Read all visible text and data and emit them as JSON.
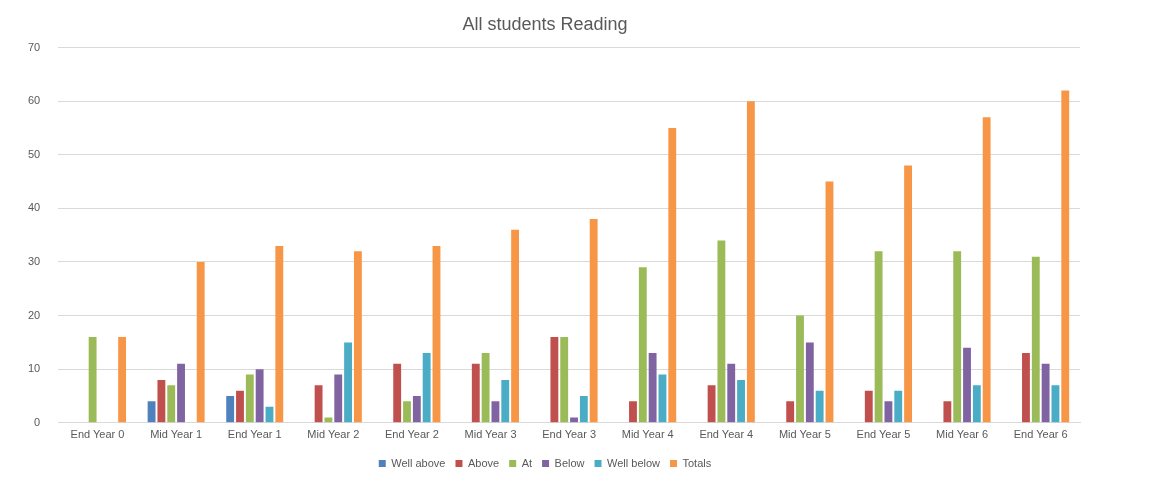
{
  "chart_data": {
    "type": "bar",
    "title": "All students Reading",
    "categories": [
      "End Year 0",
      "Mid Year 1",
      "End Year 1",
      "Mid Year 2",
      "End Year 2",
      "Mid Year 3",
      "End Year 3",
      "Mid Year 4",
      "End Year 4",
      "Mid Year 5",
      "End Year 5",
      "Mid Year 6",
      "End Year 6"
    ],
    "series": [
      {
        "name": "Well above",
        "color": "#4f81bd",
        "values": [
          0,
          4,
          5,
          0,
          0,
          0,
          0,
          0,
          0,
          0,
          0,
          0,
          0
        ]
      },
      {
        "name": "Above",
        "color": "#c0504d",
        "values": [
          0,
          8,
          6,
          7,
          11,
          11,
          16,
          4,
          7,
          4,
          6,
          4,
          13
        ]
      },
      {
        "name": "At",
        "color": "#9bbb59",
        "values": [
          16,
          7,
          9,
          1,
          4,
          13,
          16,
          29,
          34,
          20,
          32,
          32,
          31
        ]
      },
      {
        "name": "Below",
        "color": "#8064a2",
        "values": [
          0,
          11,
          10,
          9,
          5,
          4,
          1,
          13,
          11,
          15,
          4,
          14,
          11
        ]
      },
      {
        "name": "Well below",
        "color": "#4bacc6",
        "values": [
          0,
          0,
          3,
          15,
          13,
          8,
          5,
          9,
          8,
          6,
          6,
          7,
          7
        ]
      },
      {
        "name": "Totals",
        "color": "#f79646",
        "values": [
          16,
          30,
          33,
          32,
          33,
          36,
          38,
          55,
          60,
          45,
          48,
          57,
          62
        ]
      }
    ],
    "ylim": [
      0,
      70
    ],
    "yticks": [
      0,
      10,
      20,
      30,
      40,
      50,
      60,
      70
    ],
    "grid": "y",
    "legend": "bottom"
  }
}
